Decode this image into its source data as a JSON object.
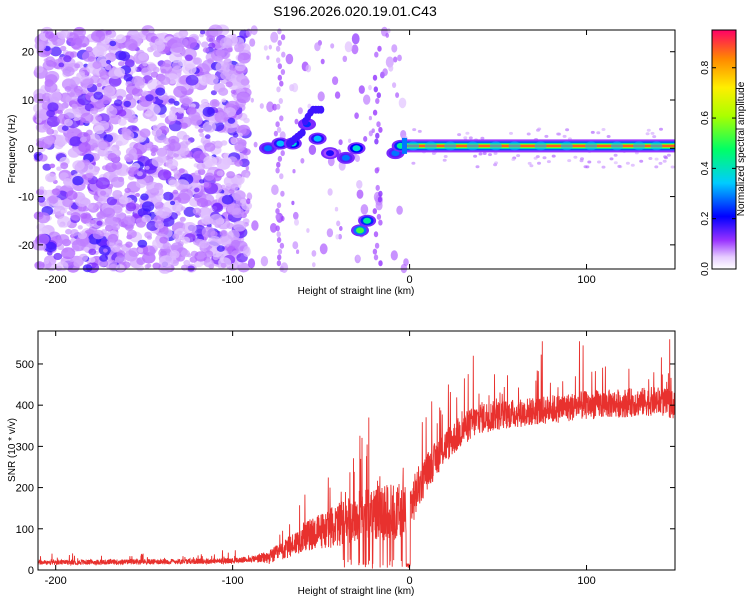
{
  "title": "S196.2026.020.19.01.C43",
  "chart_data": [
    {
      "type": "heatmap",
      "name": "spectrogram",
      "xlabel": "Height of straight line (km)",
      "ylabel": "Frequency (Hz)",
      "xlim": [
        -210,
        150
      ],
      "ylim": [
        -25,
        24.5
      ],
      "xticks": [
        -200,
        -100,
        0,
        100
      ],
      "yticks": [
        -20,
        -10,
        0,
        10,
        20
      ],
      "colorbar": {
        "label": "Normalized spectral amplitude",
        "range": [
          0,
          0.95
        ],
        "ticks": [
          0.0,
          0.2,
          0.4,
          0.6,
          0.8
        ],
        "tick_labels": [
          "0.0",
          "0.2",
          "0.4",
          "0.6",
          "0.8"
        ]
      },
      "features": [
        {
          "x": -80,
          "y": 0,
          "v": 0.3
        },
        {
          "x": -73,
          "y": 1,
          "v": 0.35
        },
        {
          "x": -66,
          "y": 1,
          "v": 0.4
        },
        {
          "x": -58,
          "y": 5,
          "v": 0.25
        },
        {
          "x": -52,
          "y": 2,
          "v": 0.35
        },
        {
          "x": -45,
          "y": -1,
          "v": 0.2
        },
        {
          "x": -36,
          "y": -2,
          "v": 0.3
        },
        {
          "x": -30,
          "y": 0,
          "v": 0.4
        },
        {
          "x": -28,
          "y": -17,
          "v": 0.55
        },
        {
          "x": -24,
          "y": -15,
          "v": 0.45
        },
        {
          "x": -8,
          "y": -1,
          "v": 0.3
        },
        {
          "x": -5,
          "y": 0.5,
          "v": 0.45
        }
      ],
      "line_signal": {
        "x_start": -2,
        "x_end": 150,
        "freq": 0.5,
        "x_range_label": "strong ridge at ~0.5 Hz from 0 km onward",
        "v": 0.92
      }
    },
    {
      "type": "line",
      "name": "snr",
      "xlabel": "Height of straight line (km)",
      "ylabel": "SNR (10 * v/v)",
      "xlim": [
        -210,
        150
      ],
      "ylim": [
        0,
        580
      ],
      "xticks": [
        -200,
        -100,
        0,
        100
      ],
      "yticks": [
        0,
        100,
        200,
        300,
        400,
        500
      ],
      "color": "#e8312e",
      "profile": [
        [
          -210,
          18
        ],
        [
          -150,
          20
        ],
        [
          -100,
          22
        ],
        [
          -80,
          30
        ],
        [
          -70,
          50
        ],
        [
          -60,
          80
        ],
        [
          -50,
          95
        ],
        [
          -40,
          110
        ],
        [
          -30,
          130
        ],
        [
          -20,
          140
        ],
        [
          -10,
          140
        ],
        [
          0,
          150
        ],
        [
          5,
          200
        ],
        [
          10,
          240
        ],
        [
          20,
          300
        ],
        [
          30,
          340
        ],
        [
          40,
          370
        ],
        [
          60,
          380
        ],
        [
          80,
          390
        ],
        [
          100,
          400
        ],
        [
          120,
          405
        ],
        [
          140,
          410
        ],
        [
          150,
          400
        ]
      ],
      "noise_profile": [
        [
          -210,
          6
        ],
        [
          -90,
          7
        ],
        [
          -70,
          25
        ],
        [
          -50,
          45
        ],
        [
          -30,
          60
        ],
        [
          -10,
          70
        ],
        [
          0,
          60
        ],
        [
          10,
          45
        ],
        [
          30,
          40
        ],
        [
          60,
          35
        ],
        [
          150,
          35
        ]
      ],
      "peaks": [
        {
          "x": 31,
          "y": 465
        },
        {
          "x": 36,
          "y": 520
        },
        {
          "x": 48,
          "y": 475
        },
        {
          "x": 75,
          "y": 555
        },
        {
          "x": 96,
          "y": 555
        },
        {
          "x": 98,
          "y": 545
        },
        {
          "x": 138,
          "y": 480
        },
        {
          "x": 147,
          "y": 560
        }
      ]
    }
  ]
}
